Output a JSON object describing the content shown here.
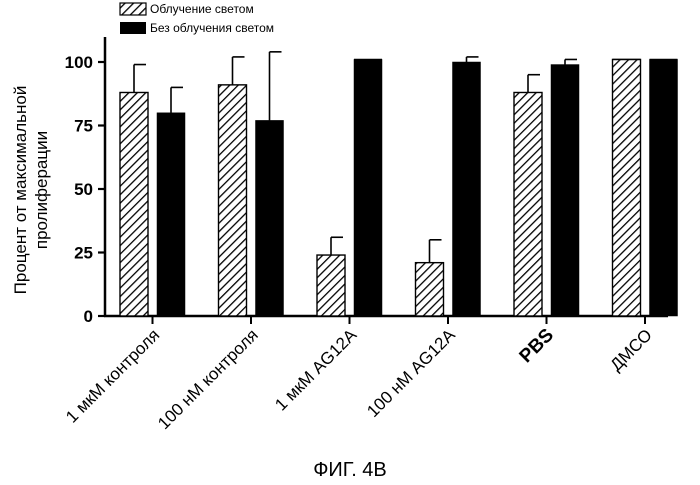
{
  "chart_data": {
    "type": "bar",
    "categories": [
      "1 мкМ контроля",
      "100 нМ контроля",
      "1 мкМ AG12A",
      "100 нМ AG12A",
      "PBS",
      "ДМСО"
    ],
    "series": [
      {
        "name": "Облучение светом",
        "pattern": "hatched",
        "color": "#000000",
        "values": [
          88,
          91,
          24,
          21,
          88,
          101
        ],
        "errors": [
          11,
          11,
          7,
          9,
          7,
          0
        ]
      },
      {
        "name": "Без облучения светом",
        "pattern": "solid",
        "color": "#000000",
        "values": [
          80,
          77,
          101,
          100,
          99,
          101
        ],
        "errors": [
          10,
          27,
          0,
          2,
          2,
          0
        ]
      }
    ],
    "ylabel_lines": [
      "Процент от максимальной",
      "пролиферации"
    ],
    "yticks": [
      "0",
      "25",
      "50",
      "75",
      "100"
    ],
    "ylim": [
      0,
      110
    ],
    "legend_position": "top-left",
    "bold_categories": [
      "PBS"
    ],
    "caption": "ФИГ. 4В"
  }
}
